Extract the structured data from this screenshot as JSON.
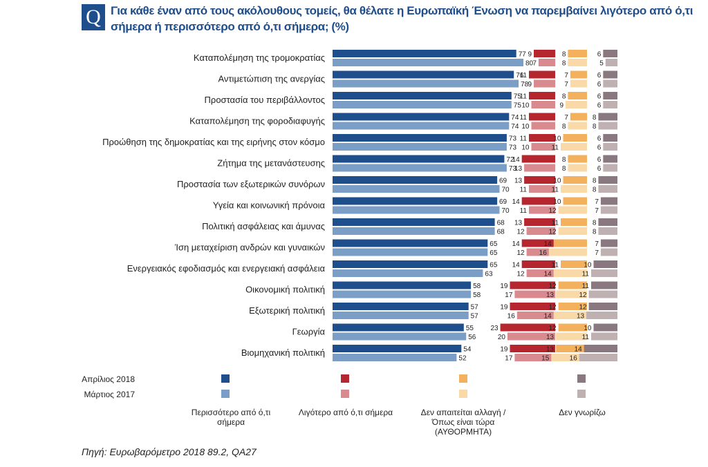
{
  "header": {
    "q_letter": "Q",
    "title": "Για κάθε έναν από τους ακόλουθους τομείς, θα θέλατε η Ευρωπαϊκή Ένωση να παρεμβαίνει λιγότερο από ό,τι σήμερα ή περισσότερο από ό,τι σήμερα; (%)"
  },
  "source": "Πηγή: Ευρωβαρόμετρο 2018 89.2, QA27",
  "colors": {
    "more_2018": "#1f4e8c",
    "more_2017": "#7b9ec6",
    "less_2018": "#b5262e",
    "less_2017": "#d98a8e",
    "same_2018": "#f4b15d",
    "same_2017": "#f9d9a7",
    "dk_2018": "#8a7880",
    "dk_2017": "#bfb0b2"
  },
  "chart_data": {
    "type": "bar",
    "orientation": "horizontal",
    "stacked": "separate-columns",
    "title": "Για κάθε έναν από τους ακόλουθους τομείς, θα θέλατε η Ευρωπαϊκή Ένωση να παρεμβαίνει λιγότερο από ό,τι σήμερα ή περισσότερο από ό,τι σήμερα; (%)",
    "periods": [
      "Απρίλιος 2018",
      "Μάρτιος 2017"
    ],
    "series_names": [
      "Περισσότερο από ό,τι σήμερα",
      "Λιγότερο από ό,τι σήμερα",
      "Δεν απαιτείται αλλαγή / Όπως είναι τώρα (ΑΥΘΟΡΜΗΤΑ)",
      "Δεν γνωρίζω"
    ],
    "categories": [
      "Καταπολέμηση της τρομοκρατίας",
      "Αντιμετώπιση της ανεργίας",
      "Προστασία του περιβάλλοντος",
      "Καταπολέμηση της φοροδιαφυγής",
      "Προώθηση της δημοκρατίας και της ειρήνης στον κόσμο",
      "Ζήτημα της μετανάστευσης",
      "Προστασία των εξωτερικών συνόρων",
      "Υγεία και κοινωνική πρόνοια",
      "Πολιτική ασφάλειας και άμυνας",
      "Ίση μεταχείριση ανδρών και γυναικών",
      "Ενεργειακός εφοδιασμός και ενεργειακή ασφάλεια",
      "Οικονομική πολιτική",
      "Εξωτερική πολιτική",
      "Γεωργία",
      "Βιομηχανική πολιτική"
    ],
    "rows": [
      [
        [
          77,
          9,
          8,
          6
        ],
        [
          80,
          7,
          8,
          5
        ]
      ],
      [
        [
          76,
          11,
          7,
          6
        ],
        [
          78,
          9,
          7,
          6
        ]
      ],
      [
        [
          75,
          11,
          8,
          6
        ],
        [
          75,
          10,
          9,
          6
        ]
      ],
      [
        [
          74,
          11,
          7,
          8
        ],
        [
          74,
          10,
          8,
          8
        ]
      ],
      [
        [
          73,
          11,
          10,
          6
        ],
        [
          73,
          10,
          11,
          6
        ]
      ],
      [
        [
          72,
          14,
          8,
          6
        ],
        [
          73,
          13,
          8,
          6
        ]
      ],
      [
        [
          69,
          13,
          10,
          8
        ],
        [
          70,
          11,
          11,
          8
        ]
      ],
      [
        [
          69,
          14,
          10,
          7
        ],
        [
          70,
          11,
          12,
          7
        ]
      ],
      [
        [
          68,
          13,
          11,
          8
        ],
        [
          68,
          12,
          12,
          8
        ]
      ],
      [
        [
          65,
          14,
          14,
          7
        ],
        [
          65,
          12,
          16,
          7
        ]
      ],
      [
        [
          65,
          14,
          11,
          10
        ],
        [
          63,
          12,
          14,
          11
        ]
      ],
      [
        [
          58,
          19,
          12,
          11
        ],
        [
          58,
          17,
          13,
          12
        ]
      ],
      [
        [
          57,
          19,
          12,
          12
        ],
        [
          57,
          16,
          14,
          13
        ]
      ],
      [
        [
          55,
          23,
          12,
          10
        ],
        [
          56,
          20,
          13,
          11
        ]
      ],
      [
        [
          54,
          19,
          13,
          14
        ],
        [
          52,
          17,
          15,
          16
        ]
      ]
    ]
  },
  "legend": {
    "period_2018": "Απρίλιος 2018",
    "period_2017": "Μάρτιος 2017",
    "more_line1": "Περισσότερο από ό,τι",
    "more_line2": "σήμερα",
    "less": "Λιγότερο από ό,τι σήμερα",
    "same_line1": "Δεν απαιτείται αλλαγή /",
    "same_line2": "Όπως είναι τώρα",
    "same_line3": "(ΑΥΘΟΡΜΗΤΑ)",
    "dk": "Δεν γνωρίζω"
  }
}
